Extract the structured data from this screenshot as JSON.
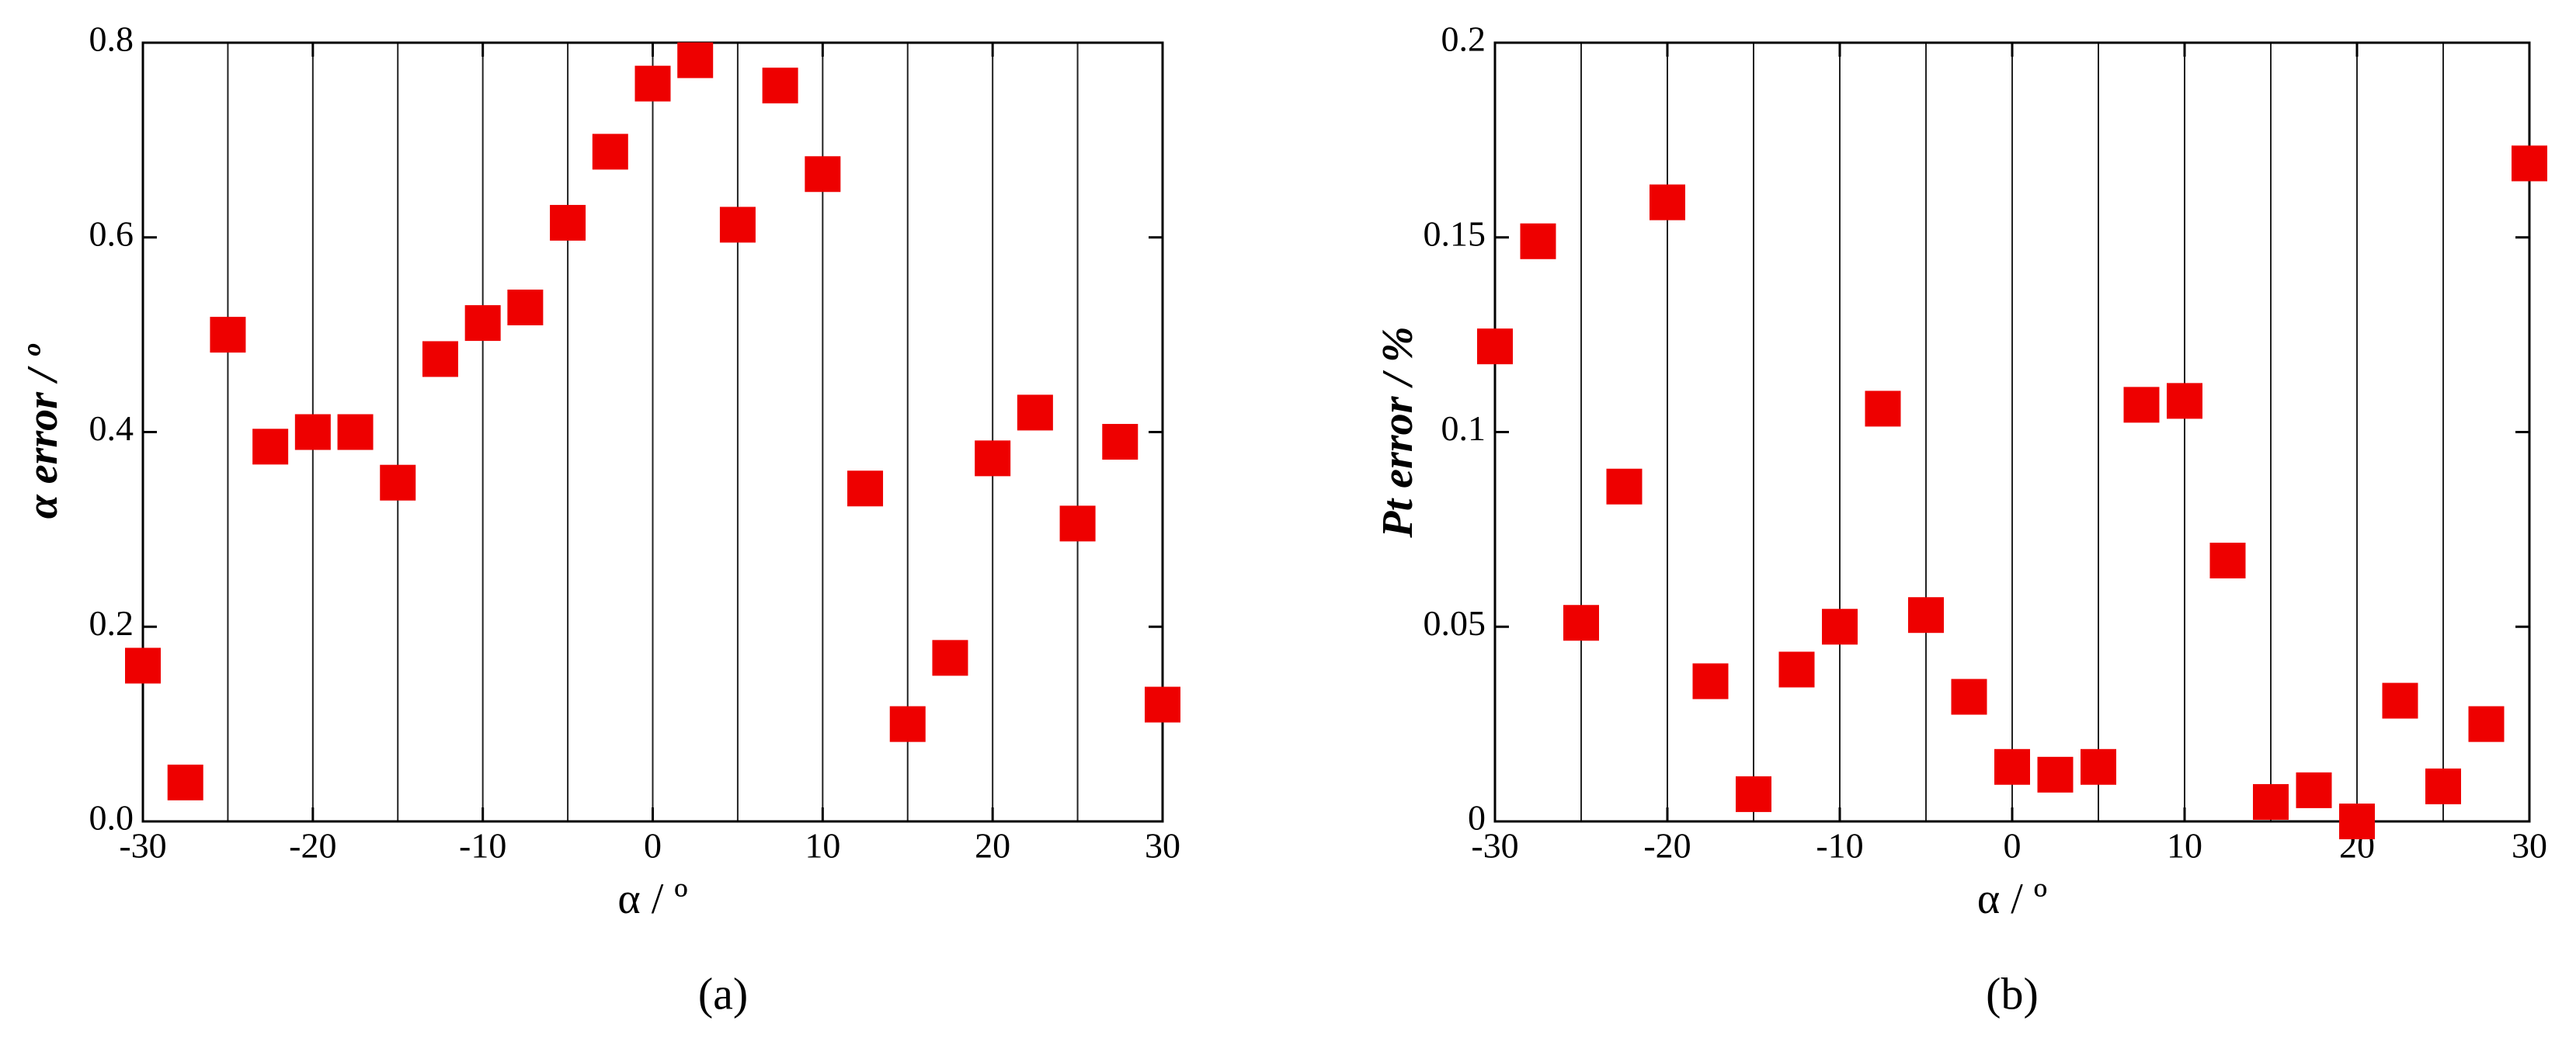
{
  "chart_data": [
    {
      "type": "scatter",
      "y_label": "α error / º",
      "x_label": "α / º",
      "caption": "(a)",
      "color": "#ee0000",
      "x": [
        -30,
        -27.5,
        -25,
        -22.5,
        -20,
        -17.5,
        -15,
        -12.5,
        -10,
        -7.5,
        -5,
        -2.5,
        0,
        2.5,
        5,
        7.5,
        10,
        12.5,
        15,
        17.5,
        20,
        22.5,
        25,
        27.5,
        30
      ],
      "values": [
        0.16,
        0.04,
        0.5,
        0.385,
        0.4,
        0.4,
        0.348,
        0.475,
        0.512,
        0.528,
        0.615,
        0.688,
        0.758,
        0.782,
        0.613,
        0.756,
        0.665,
        0.342,
        0.1,
        0.168,
        0.373,
        0.42,
        0.306,
        0.39,
        0.12
      ],
      "xlim": [
        -30,
        30
      ],
      "ylim": [
        0,
        0.8
      ],
      "xticks": [
        -30,
        -20,
        -10,
        0,
        10,
        20,
        30
      ],
      "yticks": [
        {
          "value": 0,
          "label": "0.0"
        },
        0.2,
        0.4,
        0.6,
        0.8
      ],
      "xgrid": [
        -25,
        -20,
        -15,
        -10,
        -5,
        0,
        5,
        10,
        15,
        20,
        25
      ]
    },
    {
      "type": "scatter",
      "y_label": "Pt error / %",
      "x_label": "α / º",
      "caption": "(b)",
      "color": "#ee0000",
      "x": [
        -30,
        -27.5,
        -25,
        -22.5,
        -20,
        -17.5,
        -15,
        -12.5,
        -10,
        -7.5,
        -5,
        -2.5,
        0,
        2.5,
        5,
        7.5,
        10,
        12.5,
        15,
        17.5,
        20,
        22.5,
        25,
        27.5,
        30
      ],
      "values": [
        0.122,
        0.149,
        0.051,
        0.086,
        0.159,
        0.036,
        0.007,
        0.039,
        0.05,
        0.106,
        0.053,
        0.032,
        0.014,
        0.012,
        0.014,
        0.107,
        0.108,
        0.067,
        0.005,
        0.008,
        0.0,
        0.031,
        0.009,
        0.025,
        0.169
      ],
      "xlim": [
        -30,
        30
      ],
      "ylim": [
        0,
        0.2
      ],
      "xticks": [
        -30,
        -20,
        -10,
        0,
        10,
        20,
        30
      ],
      "yticks": [
        0,
        0.05,
        0.1,
        0.15,
        0.2
      ],
      "xgrid": [
        -25,
        -20,
        -15,
        -10,
        -5,
        0,
        5,
        10,
        15,
        20,
        25
      ]
    }
  ]
}
